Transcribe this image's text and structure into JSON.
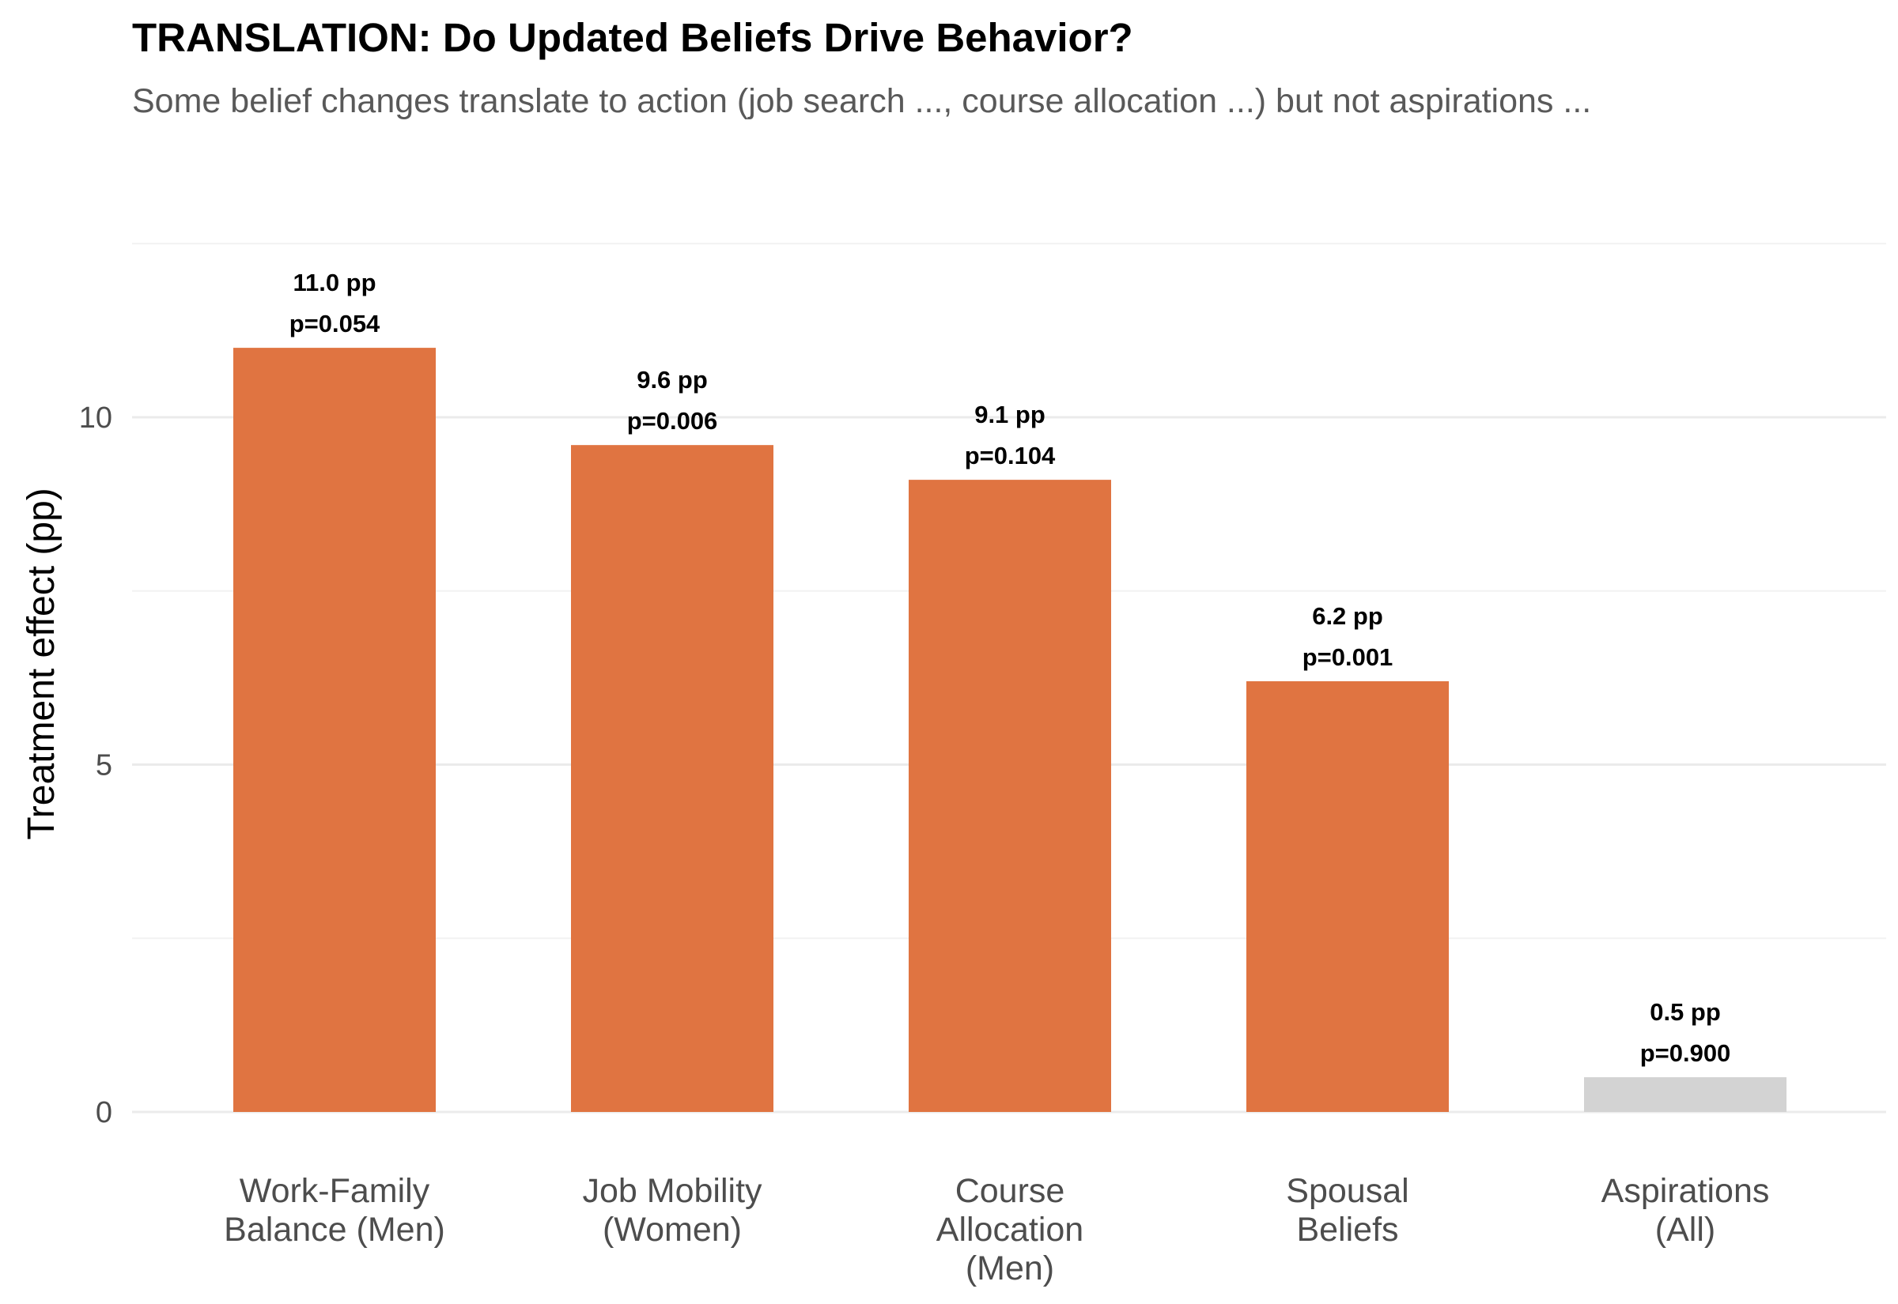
{
  "title": "TRANSLATION: Do Updated Beliefs Drive Behavior?",
  "subtitle": "Some belief changes translate to action (job search ..., course allocation ...) but not aspirations ...",
  "chart_data": {
    "type": "bar",
    "ylabel": "Treatment effect (pp)",
    "xlabel": "",
    "ylim": [
      -0.2,
      12.5
    ],
    "yticks": [
      0,
      5,
      10
    ],
    "grid": true,
    "categories": [
      [
        "Work-Family",
        "Balance (Men)"
      ],
      [
        "Job Mobility",
        "(Women)"
      ],
      [
        "Course",
        "Allocation",
        "(Men)"
      ],
      [
        "Spousal",
        "Beliefs"
      ],
      [
        "Aspirations",
        "(All)"
      ]
    ],
    "values": [
      11.0,
      9.6,
      9.1,
      6.2,
      0.5
    ],
    "value_labels": [
      "11.0 pp",
      "9.6 pp",
      "9.1 pp",
      "6.2 pp",
      "0.5 pp"
    ],
    "p_labels": [
      "p=0.054",
      "p=0.006",
      "p=0.104",
      "p=0.001",
      "p=0.900"
    ],
    "significant_color": "#E07441",
    "nonsignificant_color": "#D3D3D3",
    "bar_colors": [
      "#E07441",
      "#E07441",
      "#E07441",
      "#E07441",
      "#D3D3D3"
    ]
  }
}
